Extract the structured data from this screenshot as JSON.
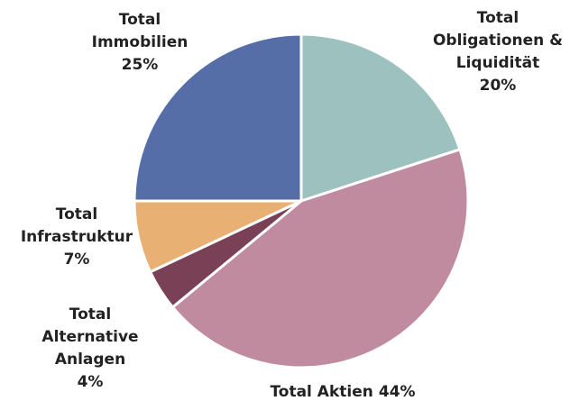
{
  "chart_data": {
    "type": "pie",
    "categories": [
      "Total Obligationen & Liquidität",
      "Total Aktien",
      "Total Alternative Anlagen",
      "Total Infrastruktur",
      "Total Immobilien"
    ],
    "values": [
      20,
      44,
      4,
      7,
      25
    ],
    "value_labels": [
      "20%",
      "44%",
      "4%",
      "7%",
      "25%"
    ],
    "colors": [
      "#9dc1be",
      "#c08b9e",
      "#7a4055",
      "#e8b173",
      "#566ea8"
    ]
  }
}
